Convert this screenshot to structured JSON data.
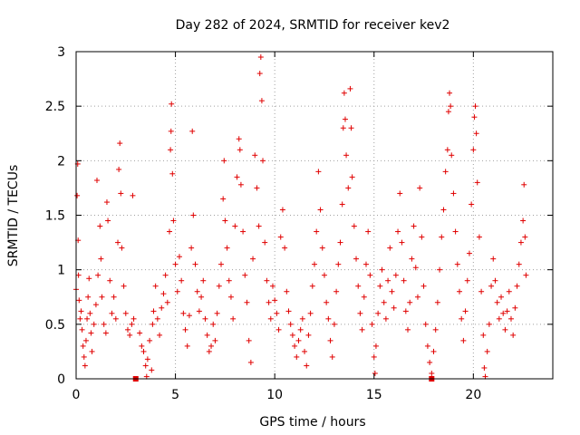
{
  "chart_data": {
    "type": "scatter",
    "title": "Day 282 of 2024, SRMTID for receiver kev2",
    "xlabel": "GPS time / hours",
    "ylabel": "SRMTID / TECUs",
    "xlim": [
      0,
      24
    ],
    "ylim": [
      0,
      3
    ],
    "xticks": [
      0,
      5,
      10,
      15,
      20
    ],
    "xtick_labels": [
      "0",
      "5",
      "10",
      "15",
      "20"
    ],
    "yticks": [
      0,
      0.5,
      1,
      1.5,
      2,
      2.5,
      3
    ],
    "ytick_labels": [
      "0",
      "0.5",
      "1",
      "1.5",
      "2",
      "2.5",
      "3"
    ],
    "grid": true,
    "marker": "plus",
    "color": "#e00000",
    "gap_markers_x": [
      3.0,
      17.9
    ],
    "series": [
      {
        "name": "SRMTID",
        "points": [
          [
            0.0,
            0.82
          ],
          [
            0.05,
            1.68
          ],
          [
            0.08,
            1.97
          ],
          [
            0.1,
            1.27
          ],
          [
            0.12,
            0.95
          ],
          [
            0.15,
            0.72
          ],
          [
            0.2,
            0.55
          ],
          [
            0.25,
            0.62
          ],
          [
            0.3,
            0.45
          ],
          [
            0.35,
            0.3
          ],
          [
            0.4,
            0.2
          ],
          [
            0.45,
            0.12
          ],
          [
            0.5,
            0.35
          ],
          [
            0.55,
            0.55
          ],
          [
            0.6,
            0.75
          ],
          [
            0.65,
            0.92
          ],
          [
            0.7,
            0.6
          ],
          [
            0.75,
            0.42
          ],
          [
            0.8,
            0.25
          ],
          [
            0.9,
            0.5
          ],
          [
            1.0,
            0.68
          ],
          [
            1.05,
            1.82
          ],
          [
            1.1,
            0.95
          ],
          [
            1.2,
            1.4
          ],
          [
            1.25,
            1.1
          ],
          [
            1.3,
            0.75
          ],
          [
            1.4,
            0.5
          ],
          [
            1.5,
            0.42
          ],
          [
            1.55,
            1.62
          ],
          [
            1.6,
            1.45
          ],
          [
            1.7,
            0.9
          ],
          [
            1.8,
            0.6
          ],
          [
            1.9,
            0.75
          ],
          [
            2.0,
            0.55
          ],
          [
            2.1,
            1.25
          ],
          [
            2.15,
            1.92
          ],
          [
            2.2,
            2.16
          ],
          [
            2.25,
            1.7
          ],
          [
            2.3,
            1.2
          ],
          [
            2.4,
            0.85
          ],
          [
            2.5,
            0.6
          ],
          [
            2.6,
            0.45
          ],
          [
            2.7,
            0.4
          ],
          [
            2.8,
            0.5
          ],
          [
            2.85,
            1.68
          ],
          [
            2.9,
            0.55
          ],
          [
            3.2,
            0.42
          ],
          [
            3.3,
            0.3
          ],
          [
            3.4,
            0.25
          ],
          [
            3.5,
            0.12
          ],
          [
            3.55,
            0.02
          ],
          [
            3.6,
            0.18
          ],
          [
            3.7,
            0.35
          ],
          [
            3.8,
            0.08
          ],
          [
            3.85,
            0.5
          ],
          [
            3.9,
            0.62
          ],
          [
            4.0,
            0.85
          ],
          [
            4.1,
            0.55
          ],
          [
            4.2,
            0.4
          ],
          [
            4.3,
            0.65
          ],
          [
            4.4,
            0.78
          ],
          [
            4.5,
            0.95
          ],
          [
            4.6,
            0.7
          ],
          [
            4.7,
            1.35
          ],
          [
            4.75,
            2.1
          ],
          [
            4.78,
            2.27
          ],
          [
            4.8,
            2.52
          ],
          [
            4.85,
            1.88
          ],
          [
            4.9,
            1.45
          ],
          [
            5.0,
            1.05
          ],
          [
            5.1,
            0.8
          ],
          [
            5.2,
            1.12
          ],
          [
            5.3,
            0.9
          ],
          [
            5.4,
            0.6
          ],
          [
            5.5,
            0.45
          ],
          [
            5.6,
            0.3
          ],
          [
            5.7,
            0.58
          ],
          [
            5.8,
            1.2
          ],
          [
            5.85,
            2.27
          ],
          [
            5.9,
            1.5
          ],
          [
            6.0,
            1.05
          ],
          [
            6.1,
            0.8
          ],
          [
            6.2,
            0.62
          ],
          [
            6.3,
            0.75
          ],
          [
            6.4,
            0.9
          ],
          [
            6.5,
            0.55
          ],
          [
            6.6,
            0.4
          ],
          [
            6.7,
            0.25
          ],
          [
            6.8,
            0.3
          ],
          [
            6.9,
            0.5
          ],
          [
            7.0,
            0.35
          ],
          [
            7.1,
            0.6
          ],
          [
            7.2,
            0.85
          ],
          [
            7.3,
            1.05
          ],
          [
            7.4,
            1.65
          ],
          [
            7.45,
            2.0
          ],
          [
            7.5,
            1.45
          ],
          [
            7.6,
            1.2
          ],
          [
            7.7,
            0.9
          ],
          [
            7.8,
            0.75
          ],
          [
            7.9,
            0.55
          ],
          [
            8.0,
            1.4
          ],
          [
            8.1,
            1.85
          ],
          [
            8.2,
            2.2
          ],
          [
            8.25,
            2.1
          ],
          [
            8.3,
            1.78
          ],
          [
            8.4,
            1.35
          ],
          [
            8.5,
            0.95
          ],
          [
            8.6,
            0.7
          ],
          [
            8.7,
            0.35
          ],
          [
            8.8,
            0.15
          ],
          [
            8.9,
            1.1
          ],
          [
            9.0,
            2.05
          ],
          [
            9.1,
            1.75
          ],
          [
            9.2,
            1.4
          ],
          [
            9.25,
            2.8
          ],
          [
            9.3,
            2.95
          ],
          [
            9.35,
            2.55
          ],
          [
            9.4,
            2.0
          ],
          [
            9.5,
            1.25
          ],
          [
            9.6,
            0.9
          ],
          [
            9.7,
            0.7
          ],
          [
            9.8,
            0.55
          ],
          [
            9.9,
            0.85
          ],
          [
            10.0,
            0.72
          ],
          [
            10.1,
            0.6
          ],
          [
            10.2,
            0.45
          ],
          [
            10.3,
            1.3
          ],
          [
            10.4,
            1.55
          ],
          [
            10.5,
            1.2
          ],
          [
            10.6,
            0.8
          ],
          [
            10.7,
            0.62
          ],
          [
            10.8,
            0.5
          ],
          [
            10.9,
            0.4
          ],
          [
            11.0,
            0.3
          ],
          [
            11.1,
            0.2
          ],
          [
            11.2,
            0.35
          ],
          [
            11.3,
            0.45
          ],
          [
            11.4,
            0.55
          ],
          [
            11.5,
            0.25
          ],
          [
            11.6,
            0.12
          ],
          [
            11.7,
            0.4
          ],
          [
            11.8,
            0.6
          ],
          [
            11.9,
            0.85
          ],
          [
            12.0,
            1.05
          ],
          [
            12.1,
            1.35
          ],
          [
            12.2,
            1.9
          ],
          [
            12.3,
            1.55
          ],
          [
            12.4,
            1.2
          ],
          [
            12.5,
            0.95
          ],
          [
            12.6,
            0.7
          ],
          [
            12.7,
            0.55
          ],
          [
            12.8,
            0.35
          ],
          [
            12.9,
            0.2
          ],
          [
            13.0,
            0.5
          ],
          [
            13.1,
            0.8
          ],
          [
            13.2,
            1.05
          ],
          [
            13.3,
            1.25
          ],
          [
            13.4,
            1.6
          ],
          [
            13.45,
            2.3
          ],
          [
            13.5,
            2.62
          ],
          [
            13.55,
            2.38
          ],
          [
            13.6,
            2.05
          ],
          [
            13.7,
            1.75
          ],
          [
            13.8,
            2.66
          ],
          [
            13.85,
            2.3
          ],
          [
            13.9,
            1.85
          ],
          [
            14.0,
            1.4
          ],
          [
            14.1,
            1.1
          ],
          [
            14.2,
            0.85
          ],
          [
            14.3,
            0.6
          ],
          [
            14.4,
            0.45
          ],
          [
            14.5,
            0.75
          ],
          [
            14.6,
            1.05
          ],
          [
            14.7,
            1.35
          ],
          [
            14.8,
            0.95
          ],
          [
            14.9,
            0.5
          ],
          [
            15.0,
            0.2
          ],
          [
            15.05,
            0.05
          ],
          [
            15.1,
            0.3
          ],
          [
            15.2,
            0.6
          ],
          [
            15.3,
            0.85
          ],
          [
            15.4,
            1.0
          ],
          [
            15.5,
            0.7
          ],
          [
            15.6,
            0.55
          ],
          [
            15.7,
            0.9
          ],
          [
            15.8,
            1.2
          ],
          [
            15.9,
            0.8
          ],
          [
            16.0,
            0.65
          ],
          [
            16.1,
            0.95
          ],
          [
            16.2,
            1.35
          ],
          [
            16.3,
            1.7
          ],
          [
            16.4,
            1.25
          ],
          [
            16.5,
            0.9
          ],
          [
            16.6,
            0.62
          ],
          [
            16.7,
            0.45
          ],
          [
            16.8,
            0.7
          ],
          [
            16.9,
            1.1
          ],
          [
            17.0,
            1.4
          ],
          [
            17.1,
            1.02
          ],
          [
            17.2,
            0.75
          ],
          [
            17.3,
            1.75
          ],
          [
            17.4,
            1.3
          ],
          [
            17.5,
            0.85
          ],
          [
            17.6,
            0.5
          ],
          [
            17.7,
            0.3
          ],
          [
            17.8,
            0.15
          ],
          [
            17.9,
            0.05
          ],
          [
            18.0,
            0.25
          ],
          [
            18.1,
            0.45
          ],
          [
            18.2,
            0.7
          ],
          [
            18.3,
            1.0
          ],
          [
            18.4,
            1.3
          ],
          [
            18.5,
            1.55
          ],
          [
            18.6,
            1.9
          ],
          [
            18.7,
            2.1
          ],
          [
            18.75,
            2.45
          ],
          [
            18.8,
            2.62
          ],
          [
            18.85,
            2.5
          ],
          [
            18.9,
            2.05
          ],
          [
            19.0,
            1.7
          ],
          [
            19.1,
            1.35
          ],
          [
            19.2,
            1.05
          ],
          [
            19.3,
            0.8
          ],
          [
            19.4,
            0.55
          ],
          [
            19.5,
            0.35
          ],
          [
            19.6,
            0.62
          ],
          [
            19.7,
            0.9
          ],
          [
            19.8,
            1.15
          ],
          [
            19.9,
            1.6
          ],
          [
            20.0,
            2.1
          ],
          [
            20.05,
            2.4
          ],
          [
            20.1,
            2.5
          ],
          [
            20.15,
            2.25
          ],
          [
            20.2,
            1.8
          ],
          [
            20.3,
            1.3
          ],
          [
            20.4,
            0.8
          ],
          [
            20.5,
            0.4
          ],
          [
            20.55,
            0.1
          ],
          [
            20.6,
            0.02
          ],
          [
            20.7,
            0.25
          ],
          [
            20.8,
            0.5
          ],
          [
            20.9,
            0.85
          ],
          [
            21.0,
            1.1
          ],
          [
            21.1,
            0.9
          ],
          [
            21.2,
            0.7
          ],
          [
            21.3,
            0.55
          ],
          [
            21.4,
            0.75
          ],
          [
            21.5,
            0.6
          ],
          [
            21.6,
            0.45
          ],
          [
            21.7,
            0.62
          ],
          [
            21.8,
            0.8
          ],
          [
            21.9,
            0.55
          ],
          [
            22.0,
            0.4
          ],
          [
            22.1,
            0.65
          ],
          [
            22.2,
            0.85
          ],
          [
            22.3,
            1.05
          ],
          [
            22.4,
            1.25
          ],
          [
            22.5,
            1.45
          ],
          [
            22.55,
            1.78
          ],
          [
            22.6,
            1.3
          ],
          [
            22.65,
            0.95
          ]
        ]
      }
    ]
  }
}
